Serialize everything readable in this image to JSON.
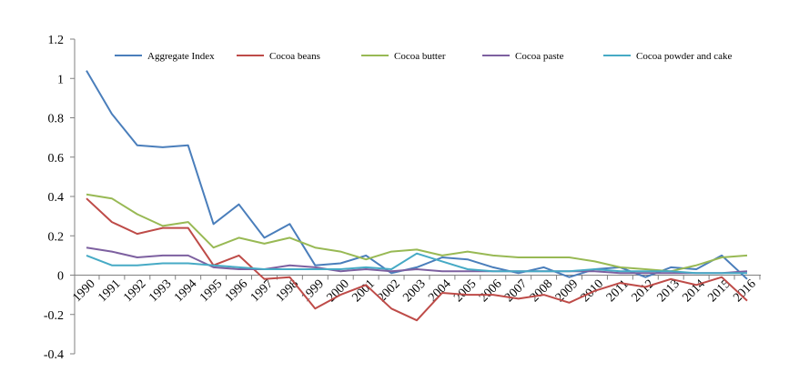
{
  "chart_data": {
    "type": "line",
    "title": "",
    "xlabel": "",
    "ylabel": "",
    "ylim": [
      -0.4,
      1.2
    ],
    "y_ticks": [
      "-0.4",
      "-0.2",
      "0",
      "0.2",
      "0.4",
      "0.6",
      "0.8",
      "1",
      "1.2"
    ],
    "y_tick_values": [
      -0.4,
      -0.2,
      0,
      0.2,
      0.4,
      0.6,
      0.8,
      1,
      1.2
    ],
    "grid": false,
    "legend_position": "top",
    "categories": [
      "1990",
      "1991",
      "1992",
      "1993",
      "1994",
      "1995",
      "1996",
      "1997",
      "1998",
      "1999",
      "2000",
      "2001",
      "2002",
      "2003",
      "2004",
      "2005",
      "2006",
      "2007",
      "2008",
      "2009",
      "2010",
      "2011",
      "2012",
      "2013",
      "2014",
      "2015",
      "2016"
    ],
    "series": [
      {
        "name": "Aggregate Index",
        "color": "#4a7ebb",
        "values": [
          1.04,
          0.82,
          0.66,
          0.65,
          0.66,
          0.26,
          0.36,
          0.19,
          0.26,
          0.05,
          0.06,
          0.1,
          0.01,
          0.04,
          0.09,
          0.08,
          0.04,
          0.01,
          0.04,
          -0.01,
          0.03,
          0.04,
          -0.01,
          0.04,
          0.03,
          0.1,
          -0.02
        ]
      },
      {
        "name": "Cocoa beans",
        "color": "#be4b48",
        "values": [
          0.39,
          0.27,
          0.21,
          0.24,
          0.24,
          0.05,
          0.1,
          -0.02,
          -0.01,
          -0.17,
          -0.1,
          -0.05,
          -0.17,
          -0.23,
          -0.09,
          -0.1,
          -0.1,
          -0.12,
          -0.1,
          -0.14,
          -0.08,
          -0.04,
          -0.06,
          -0.02,
          -0.05,
          -0.01,
          -0.13
        ]
      },
      {
        "name": "Cocoa butter",
        "color": "#98b954",
        "values": [
          0.41,
          0.39,
          0.31,
          0.25,
          0.27,
          0.14,
          0.19,
          0.16,
          0.19,
          0.14,
          0.12,
          0.08,
          0.12,
          0.13,
          0.1,
          0.12,
          0.1,
          0.09,
          0.09,
          0.09,
          0.07,
          0.04,
          0.03,
          0.02,
          0.05,
          0.09,
          0.1
        ]
      },
      {
        "name": "Cocoa paste",
        "color": "#7d60a0",
        "values": [
          0.14,
          0.12,
          0.09,
          0.1,
          0.1,
          0.04,
          0.03,
          0.03,
          0.05,
          0.04,
          0.02,
          0.03,
          0.02,
          0.03,
          0.02,
          0.02,
          0.02,
          0.02,
          0.02,
          0.02,
          0.02,
          0.01,
          0.01,
          0.01,
          0.01,
          0.01,
          0.02
        ]
      },
      {
        "name": "Cocoa powder and cake",
        "color": "#46aac5",
        "values": [
          0.1,
          0.05,
          0.05,
          0.06,
          0.06,
          0.05,
          0.04,
          0.03,
          0.03,
          0.03,
          0.03,
          0.04,
          0.03,
          0.11,
          0.07,
          0.03,
          0.02,
          0.02,
          0.02,
          0.02,
          0.03,
          0.02,
          0.02,
          0.02,
          0.01,
          0.01,
          0.01
        ]
      }
    ]
  }
}
